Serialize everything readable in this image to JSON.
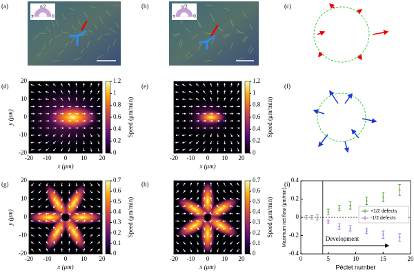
{
  "panel_labels": [
    "(a)",
    "(b)",
    "(c)",
    "(d)",
    "(e)",
    "(f)",
    "(g)",
    "(h)",
    "(i)"
  ],
  "insets": [
    {
      "top": "π/2",
      "left": "π",
      "right": "0"
    },
    {
      "top": "π/2",
      "left": "π",
      "right": "0"
    }
  ],
  "chart_data": [
    {
      "type": "heatmap",
      "xlabel": "x (μm)",
      "ylabel": "y (μm)",
      "xlim": [
        -20,
        20
      ],
      "ylim": [
        -20,
        20
      ],
      "xticks": [
        -20,
        -10,
        0,
        10,
        20
      ],
      "yticks": [
        -20,
        -10,
        0,
        10,
        20
      ],
      "show_yticklabels": true,
      "colorbar_label": "Speed (μm/min)",
      "clim": [
        0,
        1.2
      ],
      "cticks": [
        0,
        0.2,
        0.4,
        0.6,
        0.8,
        1,
        1.2
      ]
    },
    {
      "type": "heatmap",
      "xlabel": "x (μm)",
      "xlim": [
        -20,
        20
      ],
      "ylim": [
        -20,
        20
      ],
      "xticks": [
        -20,
        -10,
        0,
        10,
        20
      ],
      "yticks": [
        -20,
        -10,
        0,
        10,
        20
      ],
      "show_yticklabels": false,
      "colorbar_label": "Speed (μm/min)",
      "clim": [
        0,
        1.2
      ],
      "cticks": [
        0,
        0.2,
        0.4,
        0.6,
        0.8,
        1,
        1.2
      ]
    },
    {
      "type": "heatmap",
      "xlabel": "x (μm)",
      "ylabel": "y (μm)",
      "xlim": [
        -20,
        20
      ],
      "ylim": [
        -20,
        20
      ],
      "xticks": [
        -20,
        -10,
        0,
        10,
        20
      ],
      "yticks": [
        -20,
        -10,
        0,
        10,
        20
      ],
      "show_yticklabels": true,
      "colorbar_label": "Speed (μm/min)",
      "clim": [
        0,
        0.7
      ],
      "cticks": [
        0,
        0.1,
        0.2,
        0.3,
        0.4,
        0.5,
        0.6,
        0.7
      ]
    },
    {
      "type": "heatmap",
      "xlabel": "x (μm)",
      "xlim": [
        -20,
        20
      ],
      "ylim": [
        -20,
        20
      ],
      "xticks": [
        -20,
        -10,
        0,
        10,
        20
      ],
      "yticks": [
        -20,
        -10,
        0,
        10,
        20
      ],
      "show_yticklabels": false,
      "colorbar_label": "Speed (μm/min)",
      "clim": [
        0,
        0.7
      ],
      "cticks": [
        0,
        0.1,
        0.2,
        0.3,
        0.4,
        0.5,
        0.6,
        0.7
      ]
    },
    {
      "type": "scatter",
      "xlabel": "Péclet number",
      "ylabel": "Maximum net flow (μm/min)",
      "xlim": [
        0,
        20
      ],
      "ylim": [
        -0.4,
        0.4
      ],
      "xticks": [
        0,
        5,
        10,
        15,
        20
      ],
      "yticks": [
        0.4,
        0.2,
        0,
        -0.2,
        -0.4
      ],
      "vline": 4,
      "annotation": "Development",
      "legend": "right",
      "series": [
        {
          "name": "+1/2 defects",
          "color": "#4c9a2a",
          "x": [
            5,
            7,
            9,
            12,
            15,
            18
          ],
          "values": [
            0.06,
            0.1,
            0.13,
            0.18,
            0.22,
            0.3
          ],
          "errors": [
            0.03,
            0.03,
            0.04,
            0.04,
            0.05,
            0.06
          ]
        },
        {
          "name": "-1/2 defects",
          "color": "#9b6fd8",
          "x": [
            5,
            7,
            9,
            12,
            15,
            18
          ],
          "values": [
            -0.05,
            -0.1,
            -0.12,
            -0.15,
            -0.19,
            -0.22
          ],
          "errors": [
            0.02,
            0.03,
            0.03,
            0.03,
            0.04,
            0.04
          ]
        },
        {
          "color": "#888888",
          "x": [
            1,
            2,
            3
          ],
          "values": [
            0,
            0,
            0
          ],
          "errors": [
            0.02,
            0.02,
            0.03
          ]
        }
      ]
    }
  ]
}
